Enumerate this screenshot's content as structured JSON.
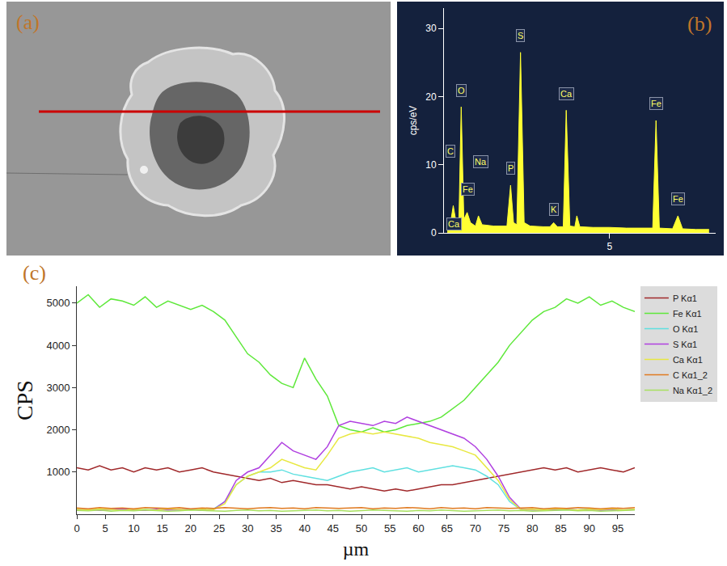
{
  "image_panel": {
    "label": "(a)"
  },
  "chart_data": [
    {
      "label": "(b)",
      "type": "line",
      "y_title": "cps/eV",
      "color": "#ffff33",
      "grid": false,
      "x": [
        0.1,
        0.2,
        0.28,
        0.35,
        0.45,
        0.52,
        0.6,
        0.7,
        0.8,
        0.95,
        1.04,
        1.15,
        1.5,
        1.9,
        2.01,
        2.1,
        2.2,
        2.31,
        2.42,
        2.6,
        3.0,
        3.2,
        3.31,
        3.42,
        3.6,
        3.69,
        3.8,
        3.95,
        4.01,
        4.1,
        4.5,
        5.0,
        5.5,
        6.0,
        6.3,
        6.4,
        6.5,
        6.9,
        7.06,
        7.2,
        7.6,
        8.0
      ],
      "values": [
        0.5,
        1.5,
        4,
        2,
        1.5,
        18.5,
        2,
        3,
        1.5,
        1.0,
        2.5,
        1.2,
        1.0,
        1.0,
        7,
        1.5,
        1.2,
        26.5,
        1.5,
        1.0,
        0.9,
        0.9,
        1.5,
        0.9,
        0.9,
        18,
        1.0,
        0.9,
        2.5,
        0.9,
        0.8,
        0.8,
        0.7,
        0.7,
        0.7,
        16.5,
        0.7,
        0.6,
        2.5,
        0.6,
        0.5,
        0.5
      ],
      "xlim": [
        0,
        8.2
      ],
      "xticks": [
        5
      ],
      "ylim": [
        0,
        33
      ],
      "yticks": [
        0,
        10,
        20,
        30
      ],
      "annotations": [
        {
          "text": "C",
          "x": 0.2,
          "y": 11
        },
        {
          "text": "O",
          "x": 0.52,
          "y": 20
        },
        {
          "text": "Fe",
          "x": 0.72,
          "y": 5.5
        },
        {
          "text": "Na",
          "x": 1.1,
          "y": 9.5
        },
        {
          "text": "Ca",
          "x": 0.3,
          "y": 0.3
        },
        {
          "text": "P",
          "x": 2.01,
          "y": 8.5
        },
        {
          "text": "S",
          "x": 2.31,
          "y": 28
        },
        {
          "text": "K",
          "x": 3.31,
          "y": 2.5
        },
        {
          "text": "Ca",
          "x": 3.69,
          "y": 19.5
        },
        {
          "text": "Fe",
          "x": 6.4,
          "y": 18
        },
        {
          "text": "Fe",
          "x": 7.06,
          "y": 4
        }
      ]
    },
    {
      "label": "(c)",
      "type": "line",
      "x_title": "µm",
      "y_title": "CPS",
      "legend": "right",
      "grid": false,
      "x": [
        0,
        2,
        4,
        6,
        8,
        10,
        12,
        14,
        16,
        18,
        20,
        22,
        24,
        26,
        28,
        30,
        32,
        34,
        36,
        38,
        40,
        42,
        44,
        46,
        48,
        50,
        52,
        54,
        56,
        58,
        60,
        62,
        64,
        66,
        68,
        70,
        72,
        74,
        76,
        78,
        80,
        82,
        84,
        86,
        88,
        90,
        92,
        94,
        96,
        98
      ],
      "xlim": [
        0,
        98
      ],
      "xticks": [
        0,
        5,
        10,
        15,
        20,
        25,
        30,
        35,
        40,
        45,
        50,
        55,
        60,
        65,
        70,
        75,
        80,
        85,
        90,
        95
      ],
      "ylim": [
        0,
        5400
      ],
      "yticks": [
        1000,
        2000,
        3000,
        4000,
        5000
      ],
      "series": [
        {
          "name": "P Kα1",
          "color": "#a0282a",
          "values": [
            1100,
            1050,
            1150,
            1050,
            1100,
            1000,
            1100,
            1050,
            1100,
            1000,
            1050,
            1100,
            1000,
            950,
            900,
            850,
            800,
            850,
            750,
            800,
            750,
            700,
            700,
            650,
            600,
            650,
            600,
            550,
            600,
            550,
            600,
            650,
            700,
            700,
            750,
            800,
            850,
            900,
            950,
            1000,
            1050,
            1100,
            1050,
            1100,
            1000,
            1050,
            1100,
            1050,
            1000,
            1100
          ]
        },
        {
          "name": "Fe Kα1",
          "color": "#5ee83a",
          "values": [
            5000,
            5200,
            4900,
            5100,
            5050,
            4950,
            5150,
            4900,
            5050,
            4950,
            4850,
            4950,
            4800,
            4600,
            4200,
            3800,
            3600,
            3300,
            3100,
            3000,
            3700,
            3200,
            2800,
            2100,
            2000,
            1950,
            2050,
            1950,
            2000,
            2100,
            2150,
            2200,
            2300,
            2500,
            2700,
            3000,
            3300,
            3600,
            4000,
            4300,
            4600,
            4800,
            4900,
            5100,
            5000,
            5150,
            4950,
            5050,
            4900,
            4800
          ]
        },
        {
          "name": "O Kα1",
          "color": "#5fe0e0",
          "values": [
            110,
            90,
            120,
            100,
            130,
            90,
            110,
            100,
            120,
            90,
            110,
            100,
            120,
            300,
            700,
            900,
            1000,
            1000,
            1050,
            950,
            900,
            850,
            800,
            900,
            1000,
            1050,
            1100,
            1000,
            1050,
            1100,
            1000,
            1050,
            1100,
            1150,
            1100,
            1050,
            900,
            700,
            300,
            110,
            100,
            120,
            90,
            110,
            100,
            130,
            90,
            110,
            100,
            120
          ]
        },
        {
          "name": "S Kα1",
          "color": "#b040e0",
          "values": [
            100,
            120,
            90,
            110,
            130,
            100,
            90,
            120,
            100,
            110,
            120,
            90,
            110,
            300,
            800,
            1000,
            1100,
            1400,
            1700,
            1500,
            1400,
            1300,
            1600,
            2100,
            2200,
            2150,
            2100,
            2200,
            2150,
            2300,
            2200,
            2100,
            2000,
            1900,
            1800,
            1600,
            1300,
            900,
            400,
            120,
            100,
            90,
            110,
            120,
            100,
            110,
            90,
            120,
            100,
            110
          ]
        },
        {
          "name": "Ca Kα1",
          "color": "#e8e840",
          "values": [
            120,
            100,
            130,
            110,
            90,
            120,
            110,
            100,
            130,
            110,
            100,
            120,
            110,
            250,
            700,
            900,
            1000,
            1100,
            1300,
            1200,
            1100,
            1050,
            1400,
            1800,
            1900,
            1950,
            1900,
            1950,
            1900,
            1850,
            1800,
            1700,
            1650,
            1600,
            1500,
            1400,
            1100,
            800,
            350,
            110,
            120,
            100,
            130,
            110,
            100,
            120,
            110,
            130,
            100,
            120
          ]
        },
        {
          "name": "C Kα1_2",
          "color": "#e07a20",
          "values": [
            150,
            130,
            160,
            140,
            150,
            130,
            160,
            150,
            140,
            160,
            130,
            150,
            140,
            160,
            150,
            130,
            150,
            160,
            140,
            150,
            130,
            160,
            150,
            140,
            150,
            160,
            130,
            150,
            140,
            160,
            150,
            130,
            160,
            140,
            150,
            130,
            160,
            150,
            140,
            150,
            160,
            130,
            150,
            140,
            160,
            150,
            130,
            150,
            140,
            160
          ]
        },
        {
          "name": "Na Kα1_2",
          "color": "#a8e060",
          "values": [
            90,
            80,
            100,
            70,
            90,
            80,
            100,
            90,
            70,
            80,
            100,
            90,
            80,
            70,
            90,
            100,
            80,
            90,
            70,
            80,
            90,
            100,
            80,
            90,
            70,
            80,
            100,
            90,
            80,
            70,
            90,
            80,
            100,
            90,
            70,
            80,
            90,
            100,
            80,
            90,
            70,
            80,
            90,
            100,
            80,
            90,
            70,
            80,
            90,
            100
          ]
        }
      ]
    }
  ]
}
